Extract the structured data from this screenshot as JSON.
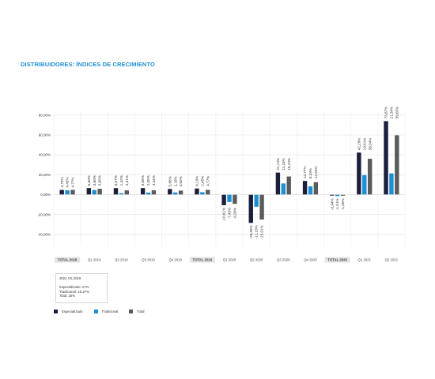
{
  "title": "DISTRIBUIDORES: ÍNDICES DE CRECIMIENTO",
  "chart_data": {
    "type": "bar",
    "categories": [
      "TOTAL 2018",
      "Q1 2019",
      "Q2 2019",
      "Q3 2019",
      "Q4 2019",
      "TOTAL 2019",
      "Q1 2020",
      "Q2 2020",
      "Q3 2020",
      "Q4 2020",
      "TOTAL 2020",
      "Q1 2021",
      "Q2 2021"
    ],
    "highlighted_categories": [
      "TOTAL 2018",
      "TOTAL 2019",
      "TOTAL 2020"
    ],
    "series": [
      {
        "name": "Especializado",
        "color": "#1b1f3b",
        "values": [
          4.73,
          6.6,
          6.57,
          6.56,
          5.66,
          6.13,
          -10.61,
          -28.38,
          22.14,
          13.77,
          -0.94,
          42.29,
          73.87
        ],
        "labels": [
          "4,73%",
          "6,60%",
          "6,57%",
          "6,56%",
          "5,66%",
          "6,13%",
          "-10,61%",
          "-28,38%",
          "22,14%",
          "13,77%",
          "-0,94%",
          "42,29%",
          "73,87%"
        ]
      },
      {
        "name": "Tradicional",
        "color": "#1a8fd4",
        "values": [
          4.43,
          4.6,
          1.42,
          2.05,
          2.18,
          2.45,
          -7.45,
          -12.16,
          11.23,
          8.33,
          -1.51,
          19.61,
          21.34
        ],
        "labels": [
          "4,43%",
          "4,60%",
          "1,42%",
          "2,05%",
          "2,18%",
          "2,45%",
          "-7,45%",
          "-12,16%",
          "11,23%",
          "8,33%",
          "-1,51%",
          "19,61%",
          "21,34%"
        ]
      },
      {
        "name": "Total",
        "color": "#5a5a5a",
        "values": [
          4.77,
          5.85,
          4.31,
          4.34,
          4.0,
          4.77,
          -9.26,
          -25.01,
          18.23,
          12.54,
          -1.05,
          36.04,
          59.65
        ],
        "labels": [
          "4,77%",
          "5,85%",
          "4,31%",
          "4,34%",
          "4,00%",
          "4,77%",
          "-9,26%",
          "-25,01%",
          "18,23%",
          "12,54%",
          "-1,05%",
          "36,04%",
          "59,65%"
        ]
      }
    ],
    "yticks": [
      -40,
      -20,
      0,
      20,
      40,
      60,
      80
    ],
    "ytick_labels": [
      "-40,00%",
      "-20,00%",
      "0,00%",
      "20,00%",
      "40,00%",
      "60,00%",
      "80,00%"
    ],
    "ylim": [
      -40,
      80
    ],
    "grid": true,
    "legend_position": "bottom-left"
  },
  "note": {
    "header": "2021 VS 2019",
    "lines": [
      "Especializado: 27%",
      "Tradicional: 16,27%",
      "Total: 25%"
    ]
  },
  "legend": [
    {
      "label": "Especializado",
      "color": "#1b1f3b"
    },
    {
      "label": "Tradicional",
      "color": "#1a8fd4"
    },
    {
      "label": "Total",
      "color": "#5a5a5a"
    }
  ]
}
